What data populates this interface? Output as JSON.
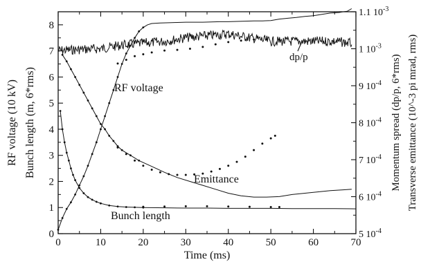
{
  "chart_data": {
    "type": "line",
    "xlabel": "Time (ms)",
    "x_ticks": [
      "0",
      "10",
      "20",
      "30",
      "40",
      "50",
      "60",
      "70"
    ],
    "xlim": [
      0,
      70
    ],
    "ylabel_left": [
      "RF voltage (10 kV)",
      "Bunch length (m, 6*rms)"
    ],
    "ylim_left": [
      0,
      8.5
    ],
    "y_ticks_left": [
      "0",
      "1",
      "2",
      "3",
      "4",
      "5",
      "6",
      "7",
      "8"
    ],
    "ylabel_right": [
      "Momentum spread (dp/p, 6*rms)",
      "Transverse emittance (10^-3 pi mrad, rms)"
    ],
    "ylim_right": [
      0.0005,
      0.0011
    ],
    "y_ticks_right": [
      {
        "m": "5",
        "e": "-4"
      },
      {
        "m": "6",
        "e": "-4"
      },
      {
        "m": "7",
        "e": "-4"
      },
      {
        "m": "8",
        "e": "-4"
      },
      {
        "m": "9",
        "e": "-4"
      },
      {
        "m": "1",
        "e": "-3"
      },
      {
        "m": "1.1",
        "e": "-3"
      }
    ],
    "annotations": [
      "dp/p",
      "RF voltage",
      "Emittance",
      "Bunch length"
    ],
    "series": [
      {
        "name": "RF voltage",
        "axis": "left",
        "style": "solid-markers",
        "x": [
          0,
          1,
          2,
          3,
          4,
          5,
          6,
          7,
          8,
          9,
          10,
          11,
          12,
          13,
          14,
          15,
          16,
          17,
          18,
          19,
          20,
          21,
          22,
          24,
          26,
          28,
          30,
          32,
          34,
          36,
          38,
          40,
          42,
          44,
          46,
          48,
          50,
          52,
          54,
          56,
          58,
          60,
          62,
          64,
          65,
          66,
          67,
          68,
          69
        ],
        "y": [
          0.15,
          0.6,
          0.95,
          1.2,
          1.5,
          1.85,
          2.2,
          2.6,
          3.05,
          3.5,
          4.0,
          4.5,
          5.0,
          5.5,
          6.0,
          6.5,
          6.9,
          7.2,
          7.5,
          7.75,
          7.9,
          8.0,
          8.05,
          8.07,
          8.08,
          8.09,
          8.1,
          8.1,
          8.1,
          8.11,
          8.12,
          8.12,
          8.13,
          8.14,
          8.15,
          8.15,
          8.16,
          8.22,
          8.25,
          8.28,
          8.32,
          8.35,
          8.4,
          8.45,
          8.46,
          8.47,
          8.5,
          8.52,
          8.62
        ]
      },
      {
        "name": "Bunch length",
        "axis": "left",
        "style": "solid-markers",
        "x": [
          0.5,
          1,
          1.5,
          2,
          2.5,
          3,
          3.5,
          4,
          5,
          6,
          7,
          8,
          9,
          10,
          12,
          14,
          16,
          18,
          20,
          25,
          30,
          35,
          40,
          45,
          50,
          55,
          60,
          65,
          70
        ],
        "y": [
          4.7,
          4.0,
          3.5,
          3.1,
          2.8,
          2.5,
          2.25,
          2.05,
          1.75,
          1.55,
          1.4,
          1.3,
          1.22,
          1.16,
          1.08,
          1.04,
          1.02,
          1.01,
          1.0,
          0.99,
          0.98,
          0.98,
          0.97,
          0.97,
          0.97,
          0.96,
          0.96,
          0.96,
          0.95
        ]
      },
      {
        "name": "Bunch length (dotted)",
        "axis": "left",
        "style": "dotted",
        "x": [
          20,
          25,
          30,
          35,
          40,
          45,
          50,
          52
        ],
        "y": [
          1.03,
          1.04,
          1.05,
          1.05,
          1.04,
          1.03,
          1.02,
          1.02
        ]
      },
      {
        "name": "Emittance",
        "axis": "left",
        "style": "solid-markers",
        "x": [
          1,
          2,
          3,
          4,
          5,
          6,
          7,
          8,
          9,
          10,
          11,
          12,
          13,
          14,
          15,
          17,
          19,
          21,
          23,
          25,
          28,
          31,
          34,
          37,
          40,
          43,
          46,
          49,
          52,
          55,
          58,
          61,
          64,
          67,
          69
        ],
        "y": [
          6.85,
          6.6,
          6.3,
          6.0,
          5.7,
          5.4,
          5.1,
          4.8,
          4.5,
          4.2,
          4.0,
          3.75,
          3.55,
          3.35,
          3.2,
          3.0,
          2.8,
          2.65,
          2.5,
          2.35,
          2.15,
          2.0,
          1.85,
          1.7,
          1.55,
          1.45,
          1.4,
          1.4,
          1.42,
          1.5,
          1.55,
          1.6,
          1.65,
          1.68,
          1.7
        ]
      },
      {
        "name": "Emittance (dotted)",
        "axis": "left",
        "style": "dotted",
        "x": [
          14,
          16,
          18,
          20,
          22,
          24,
          26,
          28,
          30,
          32,
          34,
          36,
          38,
          40,
          42,
          44,
          46,
          48,
          50,
          51
        ],
        "y": [
          3.3,
          3.05,
          2.8,
          2.6,
          2.45,
          2.35,
          2.28,
          2.25,
          2.25,
          2.27,
          2.3,
          2.38,
          2.48,
          2.6,
          2.75,
          2.95,
          3.2,
          3.45,
          3.65,
          3.75
        ]
      },
      {
        "name": "dp/p",
        "axis": "right",
        "style": "noisy",
        "x": [
          0,
          5,
          10,
          15,
          20,
          25,
          30,
          35,
          40,
          45,
          50,
          55,
          60,
          65,
          69
        ],
        "y": [
          0.000995,
          0.000998,
          0.001,
          0.00101,
          0.001015,
          0.00102,
          0.00103,
          0.001035,
          0.00104,
          0.00103,
          0.00102,
          0.00102,
          0.00102,
          0.00102,
          0.001015
        ]
      },
      {
        "name": "dp/p (dotted)",
        "axis": "right",
        "style": "dotted",
        "x": [
          14,
          16,
          18,
          20,
          22,
          25,
          28,
          31,
          34,
          37,
          40,
          43,
          46,
          49,
          52
        ],
        "y": [
          0.00096,
          0.00097,
          0.00098,
          0.000985,
          0.00099,
          0.000995,
          0.000997,
          0.001,
          0.001005,
          0.001012,
          0.001018,
          0.001022,
          0.001025,
          0.001025,
          0.001025
        ]
      }
    ]
  }
}
